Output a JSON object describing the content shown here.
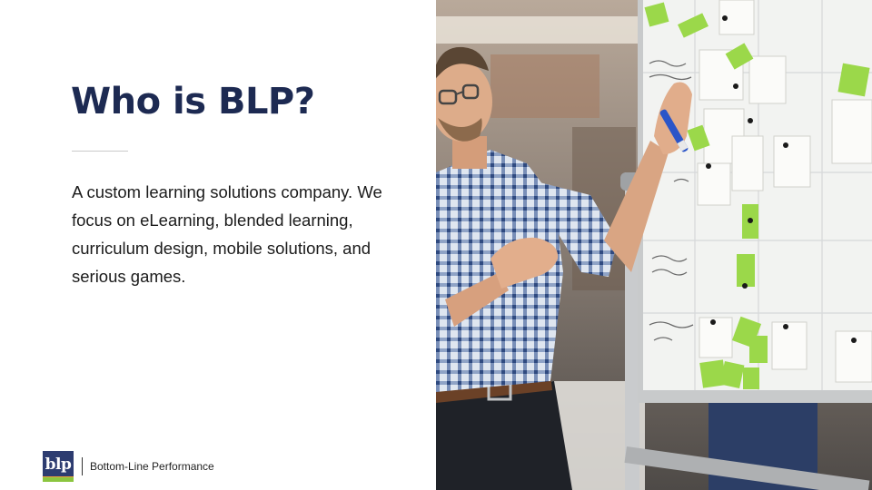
{
  "slide": {
    "title": "Who is BLP?",
    "body": "A custom learning solutions company. We focus on eLearning, blended learning, curriculum design, mobile solutions, and serious games."
  },
  "footer": {
    "logo_text": "blp",
    "company_name": "Bottom-Line Performance"
  },
  "photo": {
    "icon": "man-at-whiteboard-photo"
  },
  "colors": {
    "title": "#1d2a52",
    "logo_blue": "#2d3c70",
    "logo_green": "#8bc53f",
    "sticky_green": "#9bd84a"
  }
}
